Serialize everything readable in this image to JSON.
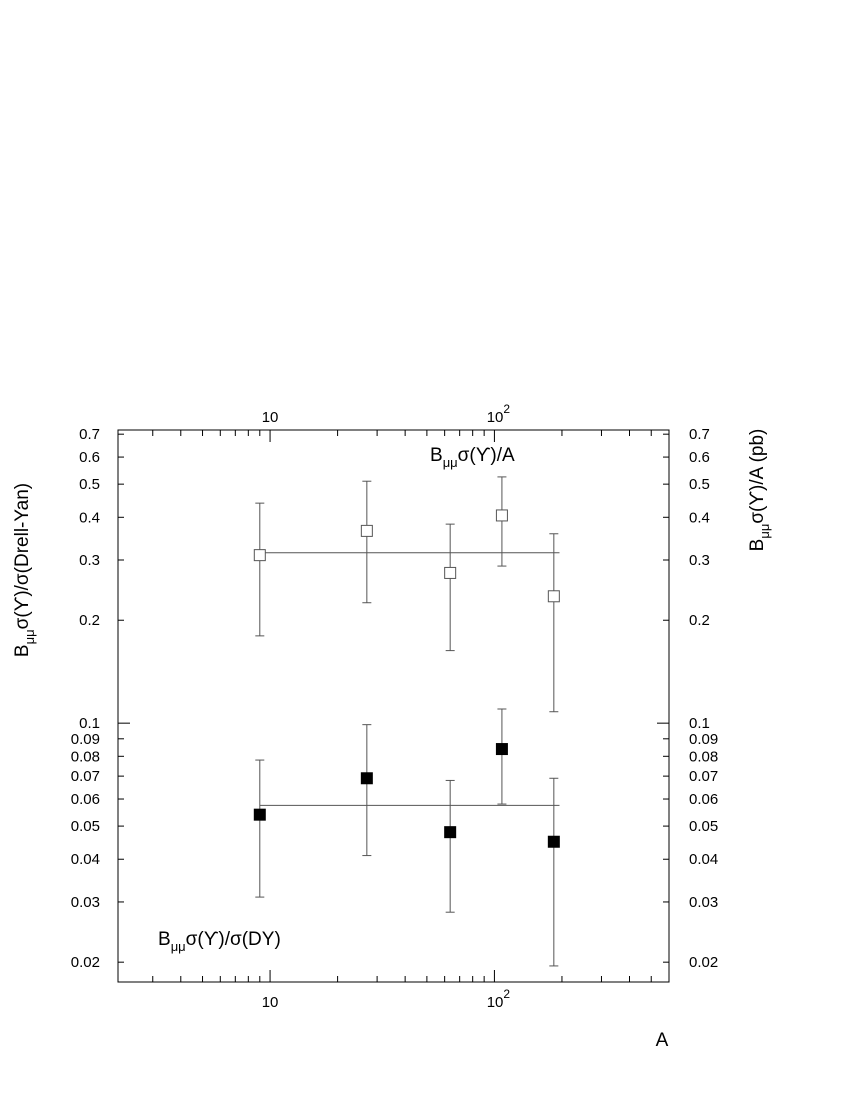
{
  "chart_data": {
    "type": "scatter",
    "xlabel": "A",
    "x_scale": "log",
    "y_scale": "log",
    "xlim": [
      2.1,
      600
    ],
    "ylim": [
      0.0175,
      0.72
    ],
    "x_ticks": [
      {
        "value": 10,
        "base": "10",
        "exp": ""
      },
      {
        "value": 100,
        "base": "10",
        "exp": "2"
      }
    ],
    "y_ticks": [
      {
        "value": 0.02,
        "label": "0.02"
      },
      {
        "value": 0.03,
        "label": "0.03"
      },
      {
        "value": 0.04,
        "label": "0.04"
      },
      {
        "value": 0.05,
        "label": "0.05"
      },
      {
        "value": 0.06,
        "label": "0.06"
      },
      {
        "value": 0.07,
        "label": "0.07"
      },
      {
        "value": 0.08,
        "label": "0.08"
      },
      {
        "value": 0.09,
        "label": "0.09"
      },
      {
        "value": 0.1,
        "label": "0.1"
      },
      {
        "value": 0.2,
        "label": "0.2"
      },
      {
        "value": 0.3,
        "label": "0.3"
      },
      {
        "value": 0.4,
        "label": "0.4"
      },
      {
        "value": 0.5,
        "label": "0.5"
      },
      {
        "value": 0.6,
        "label": "0.6"
      },
      {
        "value": 0.7,
        "label": "0.7"
      }
    ],
    "left_axis_title": {
      "b": "B",
      "sub": "μμ",
      "rest": "σ(ϒ)/σ(Drell-Yan)"
    },
    "right_axis_title": {
      "b": "B",
      "sub": "μμ",
      "rest": "σ(ϒ)/A (pb)"
    },
    "grid": false,
    "series": [
      {
        "label": {
          "b": "B",
          "sub": "μμ",
          "rest": "σ(ϒ)/A"
        },
        "marker": "open-square",
        "points": [
          {
            "x": 9,
            "y": 0.31,
            "ylo": 0.18,
            "yhi": 0.44
          },
          {
            "x": 27,
            "y": 0.365,
            "ylo": 0.225,
            "yhi": 0.51
          },
          {
            "x": 63.5,
            "y": 0.275,
            "ylo": 0.163,
            "yhi": 0.382
          },
          {
            "x": 108,
            "y": 0.405,
            "ylo": 0.288,
            "yhi": 0.525
          },
          {
            "x": 184,
            "y": 0.235,
            "ylo": 0.108,
            "yhi": 0.358
          }
        ],
        "fit": {
          "y": 0.315,
          "x_from": 9,
          "x_to": 195
        }
      },
      {
        "label": {
          "b": "B",
          "sub": "μμ",
          "rest": "σ(ϒ)/σ(DY)"
        },
        "marker": "filled-square",
        "points": [
          {
            "x": 9,
            "y": 0.054,
            "ylo": 0.031,
            "yhi": 0.078
          },
          {
            "x": 27,
            "y": 0.069,
            "ylo": 0.041,
            "yhi": 0.099
          },
          {
            "x": 63.5,
            "y": 0.048,
            "ylo": 0.028,
            "yhi": 0.068
          },
          {
            "x": 108,
            "y": 0.084,
            "ylo": 0.058,
            "yhi": 0.11
          },
          {
            "x": 184,
            "y": 0.045,
            "ylo": 0.0195,
            "yhi": 0.069
          }
        ],
        "fit": {
          "y": 0.0575,
          "x_from": 9,
          "x_to": 195
        }
      }
    ]
  }
}
